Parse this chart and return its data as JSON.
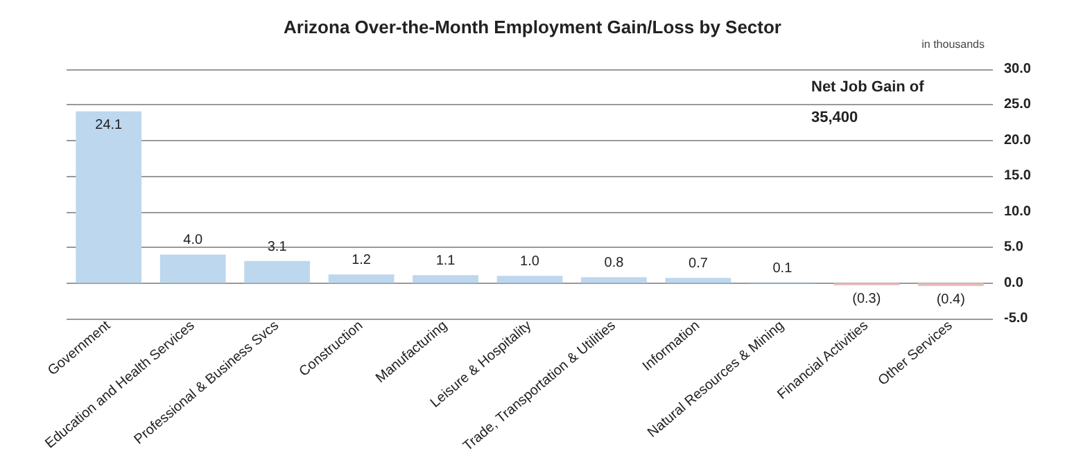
{
  "chart_data": {
    "type": "bar",
    "title": "Arizona Over-the-Month Employment Gain/Loss by Sector",
    "categories": [
      "Government",
      "Education and Health Services",
      "Professional & Business Svcs",
      "Construction",
      "Manufacturing",
      "Leisure & Hospitality",
      "Trade, Transportation & Utilities",
      "Information",
      "Natural Resources & Mining",
      "Financial Activities",
      "Other Services"
    ],
    "values": [
      24.1,
      4.0,
      3.1,
      1.2,
      1.1,
      1.0,
      0.8,
      0.7,
      0.1,
      -0.3,
      -0.4
    ],
    "value_labels": [
      "24.1",
      "4.0",
      "3.1",
      "1.2",
      "1.1",
      "1.0",
      "0.8",
      "0.7",
      "0.1",
      "(0.3)",
      "(0.4)"
    ],
    "colors": [
      "#bdd7ee",
      "#bdd7ee",
      "#bdd7ee",
      "#bdd7ee",
      "#bdd7ee",
      "#bdd7ee",
      "#bdd7ee",
      "#bdd7ee",
      "#bdd7ee",
      "#e6b9b8",
      "#e6b9b8"
    ],
    "ylim": [
      -5,
      30
    ],
    "yticks": [
      {
        "value": -5,
        "label": "-5.0"
      },
      {
        "value": 0,
        "label": "0.0"
      },
      {
        "value": 5,
        "label": "5.0"
      },
      {
        "value": 10,
        "label": "10.0"
      },
      {
        "value": 15,
        "label": "15.0"
      },
      {
        "value": 20,
        "label": "20.0"
      },
      {
        "value": 25,
        "label": "25.0"
      },
      {
        "value": 30,
        "label": "30.0"
      }
    ],
    "grid": "y",
    "annotations": [
      "in thousands",
      "Net Job Gain of\n35,400"
    ]
  }
}
